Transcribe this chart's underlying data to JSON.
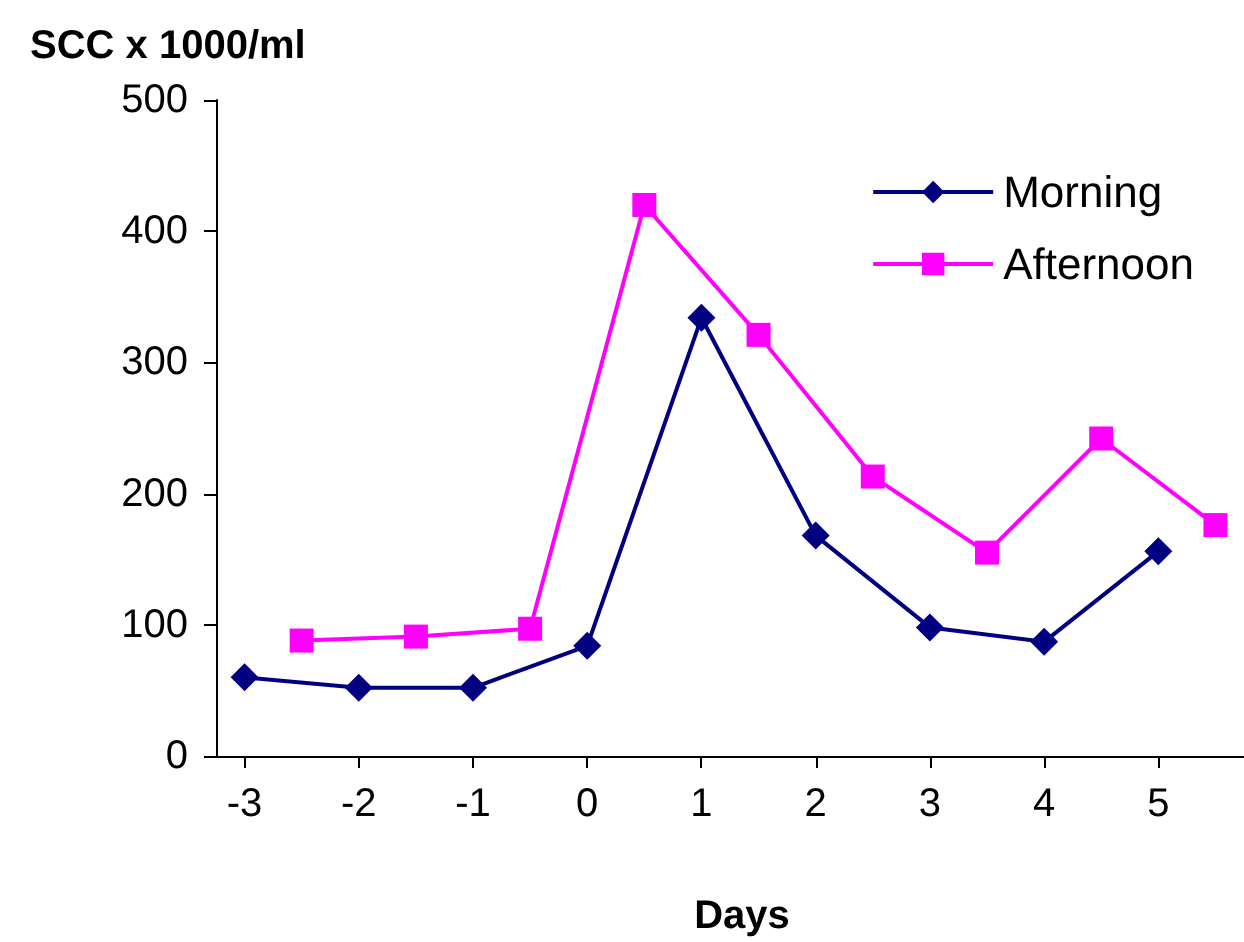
{
  "chart_data": {
    "type": "line",
    "ylabel": "SCC x 1000/ml",
    "xlabel": "Days",
    "xlim": [
      -3.25,
      5.75
    ],
    "xticks": [
      -3,
      -2,
      -1,
      0,
      1,
      2,
      3,
      4,
      5
    ],
    "ylim": [
      0,
      500
    ],
    "yticks": [
      0,
      100,
      200,
      300,
      400,
      500
    ],
    "grid": false,
    "legend": "top right",
    "series": [
      {
        "name": "Morning",
        "color": "#000080",
        "marker": "diamond",
        "x": [
          -3,
          -2,
          -1,
          0,
          1,
          2,
          3,
          4,
          5
        ],
        "values": [
          60,
          52,
          52,
          84,
          334,
          168,
          98,
          87,
          156
        ]
      },
      {
        "name": "Afternoon",
        "color": "#ff00ff",
        "marker": "square",
        "x": [
          -2.5,
          -1.5,
          -0.5,
          0.5,
          1.5,
          2.5,
          3.5,
          4.5,
          5.5
        ],
        "values": [
          88,
          91,
          97,
          420,
          321,
          213,
          155,
          242,
          176
        ]
      }
    ]
  }
}
